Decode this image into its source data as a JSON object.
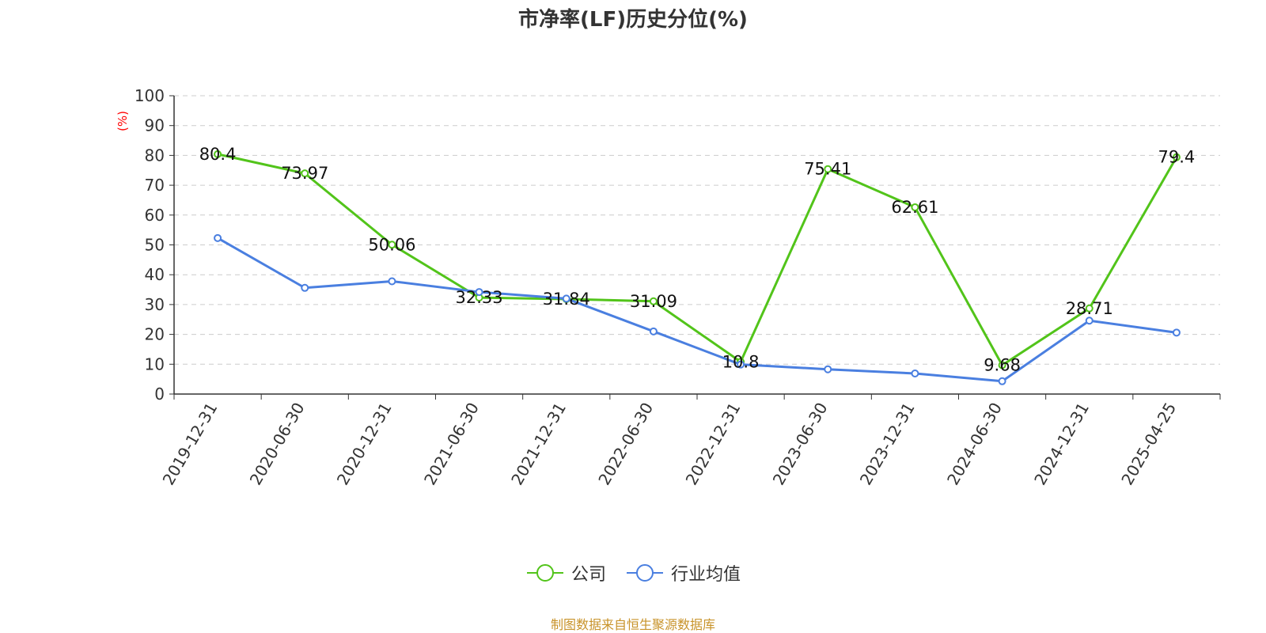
{
  "chart_data": {
    "type": "line",
    "title": "市净率(LF)历史分位(%)",
    "ylabel": "(%)",
    "ylim": [
      0,
      100
    ],
    "yticks": [
      0,
      10,
      20,
      30,
      40,
      50,
      60,
      70,
      80,
      90,
      100
    ],
    "grid": true,
    "legend_position": "bottom",
    "categories": [
      "2019-12-31",
      "2020-06-30",
      "2020-12-31",
      "2021-06-30",
      "2021-12-31",
      "2022-06-30",
      "2022-12-31",
      "2023-06-30",
      "2023-12-31",
      "2024-06-30",
      "2024-12-31",
      "2025-04-25"
    ],
    "series": [
      {
        "name": "公司",
        "color": "#52c41a",
        "show_labels": true,
        "values": [
          80.4,
          73.97,
          50.06,
          32.33,
          31.84,
          31.09,
          10.8,
          75.41,
          62.61,
          9.68,
          28.71,
          79.4
        ]
      },
      {
        "name": "行业均值",
        "color": "#4a7fe0",
        "show_labels": false,
        "values": [
          52.3,
          35.6,
          37.8,
          34.2,
          32.0,
          21.0,
          9.9,
          8.3,
          6.9,
          4.3,
          24.6,
          20.6
        ]
      }
    ],
    "source": "制图数据来自恒生聚源数据库"
  }
}
